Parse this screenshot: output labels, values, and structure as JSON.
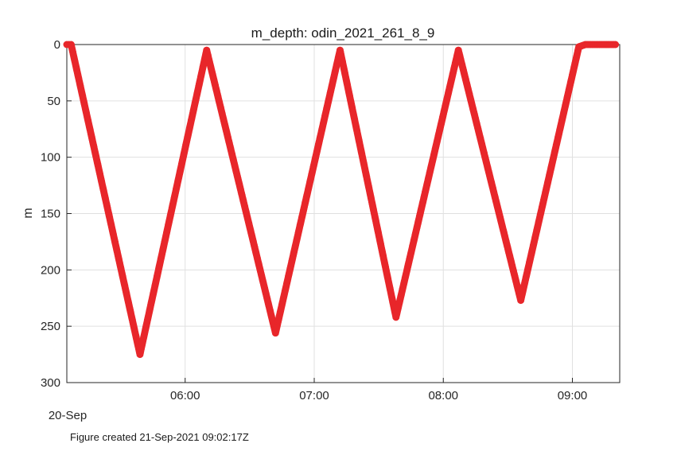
{
  "chart_data": {
    "type": "scatter",
    "title": "m_depth: odin_2021_261_8_9",
    "ylabel": "m",
    "date_label": "20-Sep",
    "footer": "Figure created 21-Sep-2021 09:02:17Z",
    "xlim": [
      "05:05",
      "09:22"
    ],
    "ylim": [
      0,
      300
    ],
    "y_reversed": true,
    "grid": true,
    "x_ticks": [
      "06:00",
      "07:00",
      "08:00",
      "09:00"
    ],
    "y_ticks": [
      0,
      50,
      100,
      150,
      200,
      250,
      300
    ],
    "marker_color": "#e8262a",
    "profile_vertices": [
      {
        "time": "05:05",
        "depth": 0
      },
      {
        "time": "05:07",
        "depth": 0
      },
      {
        "time": "05:39",
        "depth": 275
      },
      {
        "time": "06:10",
        "depth": 5
      },
      {
        "time": "06:42",
        "depth": 256
      },
      {
        "time": "07:12",
        "depth": 5
      },
      {
        "time": "07:38",
        "depth": 242
      },
      {
        "time": "08:07",
        "depth": 5
      },
      {
        "time": "08:36",
        "depth": 227
      },
      {
        "time": "09:03",
        "depth": 2
      },
      {
        "time": "09:06",
        "depth": 0
      },
      {
        "time": "09:20",
        "depth": 0
      }
    ]
  }
}
